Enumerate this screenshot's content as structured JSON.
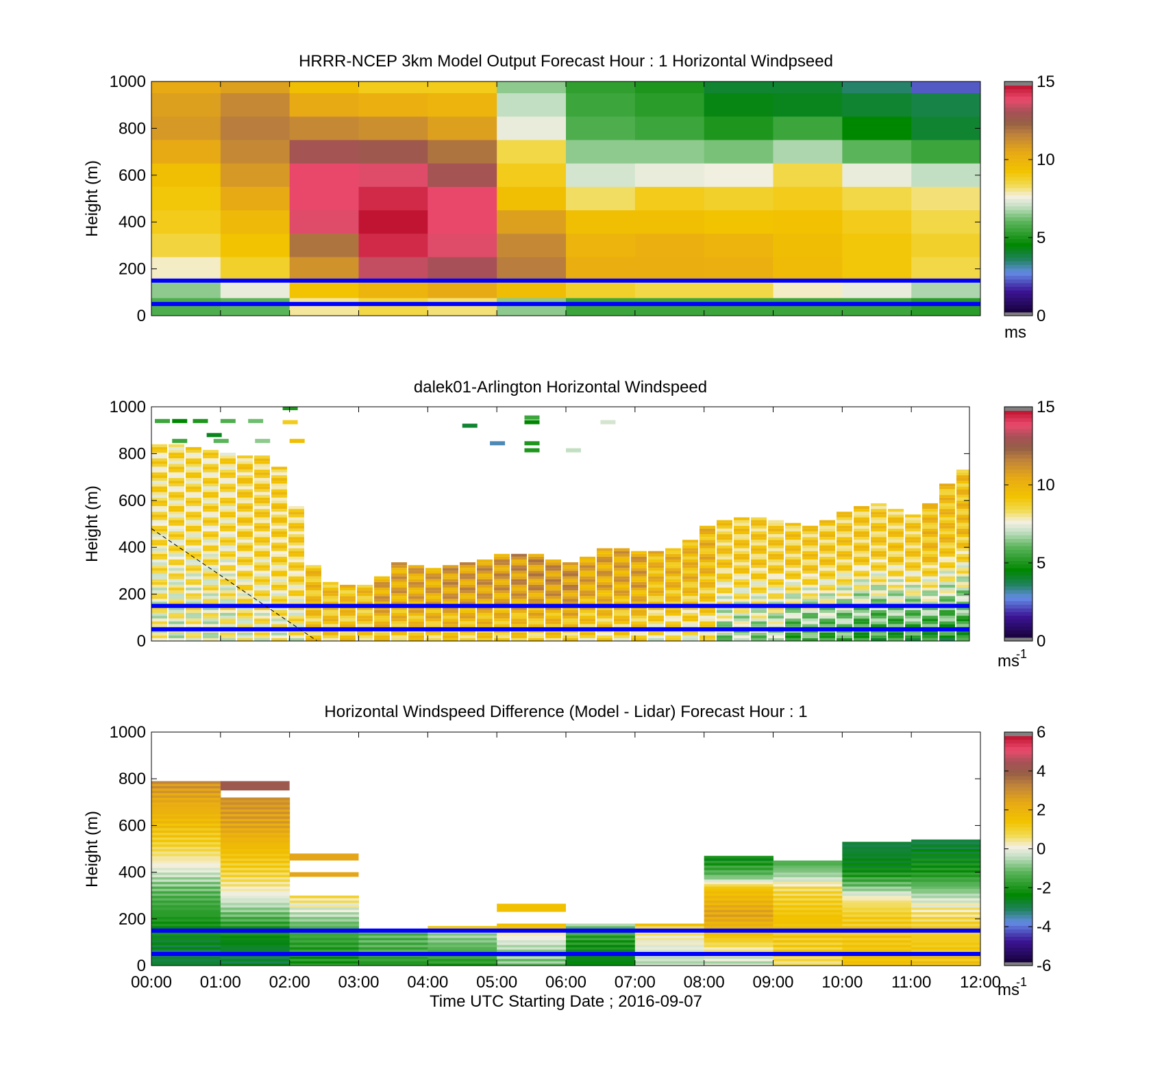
{
  "figure": {
    "xlabel": "Time UTC  Starting Date ; 2016-09-07",
    "x_ticks": [
      "00:00",
      "01:00",
      "02:00",
      "03:00",
      "04:00",
      "05:00",
      "06:00",
      "07:00",
      "08:00",
      "09:00",
      "10:00",
      "11:00",
      "12:00"
    ],
    "reference_lines_m": [
      150,
      50
    ],
    "reference_line_color": "#0000ff"
  },
  "chart_data": [
    {
      "type": "heatmap",
      "title": "HRRR-NCEP 3km Model Output   Forecast Hour : 1 Horizontal Windpseed",
      "ylabel": "Height (m)",
      "ylim": [
        0,
        1000
      ],
      "y_ticks": [
        "0",
        "200",
        "400",
        "600",
        "800",
        "1000"
      ],
      "colorbar": {
        "ticks": [
          "0",
          "5",
          "10",
          "15"
        ],
        "range": [
          0,
          15
        ],
        "unit": "ms"
      },
      "x_hours": [
        0,
        1,
        2,
        3,
        4,
        5,
        6,
        7,
        8,
        9,
        10,
        11
      ],
      "y_levels_m": [
        1000,
        900,
        800,
        700,
        600,
        500,
        400,
        300,
        200,
        100,
        50
      ],
      "values": [
        [
          10.5,
          10.8,
          9.5,
          9.0,
          9.0,
          6.5,
          5.3,
          5.0,
          4.0,
          4.0,
          3.5,
          2.2
        ],
        [
          10.8,
          11.5,
          10.5,
          10.2,
          10.0,
          7.0,
          5.5,
          5.2,
          4.3,
          4.2,
          4.0,
          3.8
        ],
        [
          11.0,
          11.8,
          11.5,
          11.3,
          10.8,
          7.5,
          5.8,
          5.5,
          5.0,
          5.5,
          4.5,
          4.0
        ],
        [
          10.5,
          11.5,
          13.0,
          12.8,
          12.0,
          8.5,
          6.5,
          6.5,
          6.3,
          6.8,
          6.0,
          5.5
        ],
        [
          9.5,
          11.0,
          14.0,
          13.8,
          13.0,
          9.0,
          7.2,
          7.5,
          7.6,
          8.5,
          7.5,
          7.0
        ],
        [
          9.2,
          10.5,
          14.0,
          14.5,
          14.0,
          9.5,
          8.3,
          9.0,
          8.8,
          9.0,
          8.5,
          8.2
        ],
        [
          9.0,
          9.8,
          13.8,
          14.8,
          14.0,
          10.8,
          9.5,
          9.5,
          9.3,
          9.4,
          9.0,
          8.5
        ],
        [
          8.6,
          9.3,
          12.0,
          14.5,
          13.8,
          11.5,
          10.0,
          10.2,
          10.0,
          9.6,
          9.2,
          8.8
        ],
        [
          7.8,
          8.8,
          11.2,
          13.5,
          13.2,
          11.8,
          10.3,
          10.3,
          10.2,
          9.7,
          9.2,
          8.5
        ],
        [
          6.5,
          7.5,
          9.3,
          10.0,
          10.5,
          9.6,
          8.8,
          8.5,
          8.5,
          7.8,
          7.5,
          6.8
        ],
        [
          5.8,
          6.0,
          8.0,
          8.5,
          8.2,
          6.5,
          5.5,
          5.5,
          5.5,
          5.5,
          5.5,
          5.2
        ]
      ]
    },
    {
      "type": "heatmap",
      "title": "dalek01-Arlington  Horizontal Windspeed",
      "ylabel": "Height (m)",
      "ylim": [
        0,
        1000
      ],
      "y_ticks": [
        "0",
        "200",
        "400",
        "600",
        "800",
        "1000"
      ],
      "colorbar": {
        "ticks": [
          "0",
          "5",
          "10",
          "15"
        ],
        "range": [
          0,
          15
        ],
        "unit": "ms",
        "unit_exponent": "-1"
      },
      "data_top_height_m": [
        {
          "hour": 0.0,
          "top": 840
        },
        {
          "hour": 0.5,
          "top": 820
        },
        {
          "hour": 1.0,
          "top": 800
        },
        {
          "hour": 1.5,
          "top": 780
        },
        {
          "hour": 1.8,
          "top": 720
        },
        {
          "hour": 2.0,
          "top": 560
        },
        {
          "hour": 2.3,
          "top": 250
        },
        {
          "hour": 3.0,
          "top": 230
        },
        {
          "hour": 3.5,
          "top": 330
        },
        {
          "hour": 4.0,
          "top": 310
        },
        {
          "hour": 4.5,
          "top": 330
        },
        {
          "hour": 5.0,
          "top": 370
        },
        {
          "hour": 5.5,
          "top": 360
        },
        {
          "hour": 6.0,
          "top": 330
        },
        {
          "hour": 6.5,
          "top": 400
        },
        {
          "hour": 7.0,
          "top": 370
        },
        {
          "hour": 7.5,
          "top": 390
        },
        {
          "hour": 8.0,
          "top": 500
        },
        {
          "hour": 8.5,
          "top": 520
        },
        {
          "hour": 9.0,
          "top": 510
        },
        {
          "hour": 9.5,
          "top": 480
        },
        {
          "hour": 10.0,
          "top": 560
        },
        {
          "hour": 10.5,
          "top": 580
        },
        {
          "hour": 11.0,
          "top": 530
        },
        {
          "hour": 11.5,
          "top": 700
        },
        {
          "hour": 11.9,
          "top": 760
        }
      ],
      "profile_speed_ms": {
        "by_hour": [
          8.5,
          8.8,
          9.5,
          10.5,
          10.8,
          11.0,
          10.5,
          9.8,
          9.0,
          9.0,
          9.0,
          9.5
        ],
        "near_surface": [
          7.5,
          7.8,
          9.0,
          9.0,
          9.0,
          8.8,
          8.5,
          8.0,
          6.5,
          5.5,
          5.0,
          4.8
        ]
      },
      "dashed_line": {
        "from": {
          "hour": 0.0,
          "height_m": 480
        },
        "to": {
          "hour": 2.4,
          "height_m": 0
        }
      }
    },
    {
      "type": "heatmap",
      "title": "Horizontal Windspeed Difference (Model - Lidar) Forecast Hour : 1",
      "ylabel": "Height (m)",
      "ylim": [
        0,
        1000
      ],
      "y_ticks": [
        "0",
        "200",
        "400",
        "600",
        "800",
        "1000"
      ],
      "colorbar": {
        "ticks": [
          "-6",
          "-4",
          "-2",
          "0",
          "2",
          "4",
          "6"
        ],
        "range": [
          -6,
          6
        ],
        "unit": "ms",
        "unit_exponent": "-1"
      },
      "columns": [
        {
          "hour": 0,
          "top_m": 790,
          "profile": [
            [
              790,
              3.0
            ],
            [
              650,
              2.0
            ],
            [
              520,
              1.0
            ],
            [
              420,
              0.0
            ],
            [
              320,
              -1.2
            ],
            [
              200,
              -2.0
            ],
            [
              120,
              -2.5
            ],
            [
              50,
              -3.0
            ],
            [
              0,
              -2.8
            ]
          ]
        },
        {
          "hour": 1,
          "top_m": 720,
          "band": {
            "from_m": 750,
            "to_m": 790,
            "value": 4.2
          },
          "profile": [
            [
              720,
              3.0
            ],
            [
              600,
              2.5
            ],
            [
              480,
              1.5
            ],
            [
              380,
              0.8
            ],
            [
              320,
              0.2
            ],
            [
              260,
              -0.5
            ],
            [
              160,
              -2.0
            ],
            [
              50,
              -3.0
            ],
            [
              0,
              -2.8
            ]
          ]
        },
        {
          "hour": 2,
          "top_m": 300,
          "band": {
            "from_m": 450,
            "to_m": 480,
            "value": 2.5
          },
          "band2": {
            "from_m": 380,
            "to_m": 400,
            "value": 2.5
          },
          "profile": [
            [
              300,
              0.8
            ],
            [
              230,
              -0.3
            ],
            [
              150,
              -1.5
            ],
            [
              50,
              -2.0
            ],
            [
              0,
              -2.0
            ]
          ]
        },
        {
          "hour": 3,
          "top_m": 150,
          "profile": [
            [
              150,
              -1.2
            ],
            [
              50,
              -1.5
            ],
            [
              0,
              -2.0
            ]
          ]
        },
        {
          "hour": 4,
          "top_m": 165,
          "profile": [
            [
              165,
              0.8
            ],
            [
              150,
              -0.5
            ],
            [
              50,
              -1.5
            ],
            [
              0,
              -2.0
            ]
          ]
        },
        {
          "hour": 5,
          "top_m": 250,
          "band": {
            "from_m": 230,
            "to_m": 265,
            "value": 1.5
          },
          "profile": [
            [
              180,
              2.0
            ],
            [
              150,
              0.5
            ],
            [
              80,
              -0.5
            ],
            [
              0,
              -1.0
            ]
          ]
        },
        {
          "hour": 6,
          "top_m": 180,
          "profile": [
            [
              180,
              -0.5
            ],
            [
              150,
              -1.5
            ],
            [
              50,
              -2.5
            ],
            [
              0,
              -2.5
            ]
          ]
        },
        {
          "hour": 7,
          "top_m": 180,
          "profile": [
            [
              180,
              1.5
            ],
            [
              150,
              0.5
            ],
            [
              50,
              -0.3
            ],
            [
              0,
              -0.5
            ]
          ]
        },
        {
          "hour": 8,
          "top_m": 470,
          "profile": [
            [
              470,
              -2.5
            ],
            [
              380,
              -1.0
            ],
            [
              330,
              1.5
            ],
            [
              220,
              2.5
            ],
            [
              150,
              1.8
            ],
            [
              60,
              0.2
            ],
            [
              0,
              -0.5
            ]
          ]
        },
        {
          "hour": 9,
          "top_m": 450,
          "profile": [
            [
              450,
              -1.5
            ],
            [
              380,
              -0.5
            ],
            [
              330,
              0.8
            ],
            [
              200,
              1.5
            ],
            [
              50,
              1.0
            ],
            [
              0,
              0.5
            ]
          ]
        },
        {
          "hour": 10,
          "top_m": 530,
          "profile": [
            [
              530,
              -3.0
            ],
            [
              420,
              -2.5
            ],
            [
              340,
              -1.0
            ],
            [
              280,
              0.5
            ],
            [
              200,
              1.2
            ],
            [
              0,
              1.5
            ]
          ]
        },
        {
          "hour": 11,
          "top_m": 535,
          "profile": [
            [
              535,
              -3.0
            ],
            [
              400,
              -2.0
            ],
            [
              330,
              -1.0
            ],
            [
              250,
              0.3
            ],
            [
              180,
              1.0
            ],
            [
              0,
              1.5
            ]
          ]
        }
      ]
    }
  ]
}
